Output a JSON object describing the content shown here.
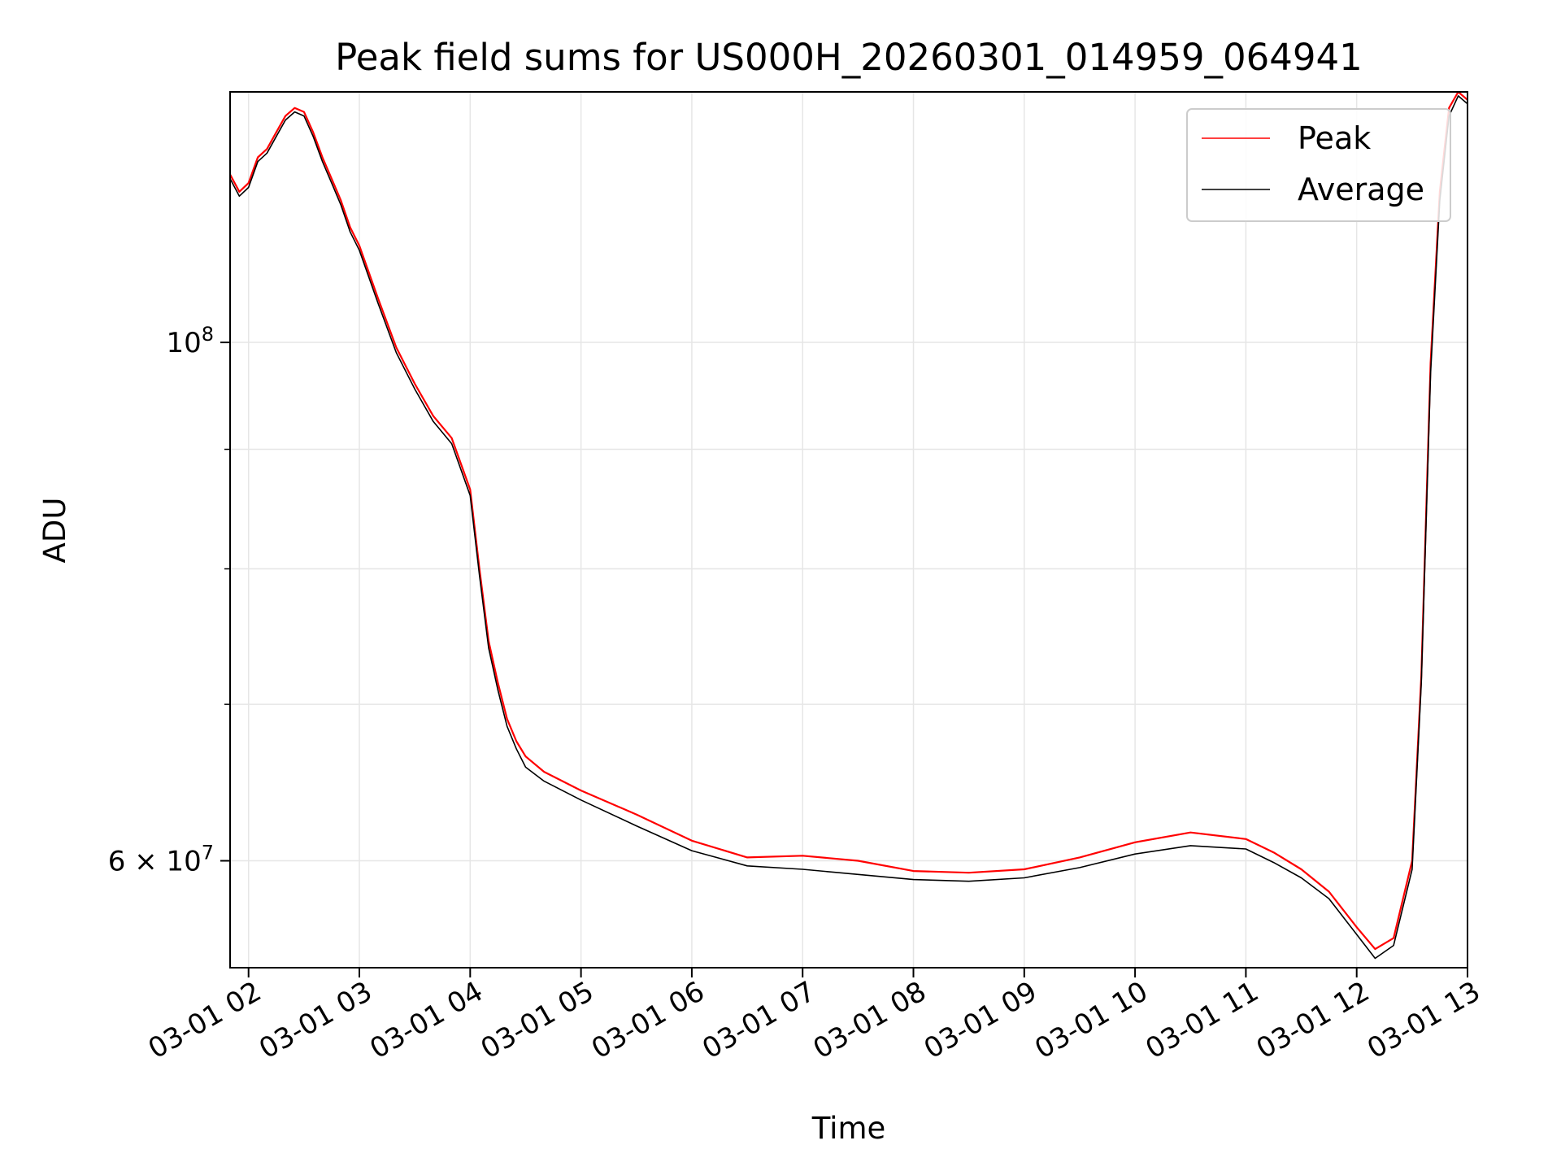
{
  "chart_data": {
    "type": "line",
    "title": "Peak field sums for US000H_20260301_014959_064941",
    "xlabel": "Time",
    "ylabel": "ADU",
    "y_scale": "log",
    "xlim": [
      "2026-03-01 01:50",
      "2026-03-01 13:00"
    ],
    "ylim": [
      54000000,
      128000000
    ],
    "x_ticks": [
      {
        "value": "2026-03-01 02:00",
        "label": "03-01 02"
      },
      {
        "value": "2026-03-01 03:00",
        "label": "03-01 03"
      },
      {
        "value": "2026-03-01 04:00",
        "label": "03-01 04"
      },
      {
        "value": "2026-03-01 05:00",
        "label": "03-01 05"
      },
      {
        "value": "2026-03-01 06:00",
        "label": "03-01 06"
      },
      {
        "value": "2026-03-01 07:00",
        "label": "03-01 07"
      },
      {
        "value": "2026-03-01 08:00",
        "label": "03-01 08"
      },
      {
        "value": "2026-03-01 09:00",
        "label": "03-01 09"
      },
      {
        "value": "2026-03-01 10:00",
        "label": "03-01 10"
      },
      {
        "value": "2026-03-01 11:00",
        "label": "03-01 11"
      },
      {
        "value": "2026-03-01 12:00",
        "label": "03-01 12"
      },
      {
        "value": "2026-03-01 13:00",
        "label": "03-01 13"
      }
    ],
    "y_ticks_major": [
      {
        "value": 60000000,
        "mantissa": "6",
        "exponent": "7"
      },
      {
        "value": 100000000,
        "mantissa": "",
        "exponent": "8"
      }
    ],
    "y_ticks_minor": [
      70000000,
      80000000,
      90000000
    ],
    "grid": true,
    "legend_position": "top-right",
    "series": [
      {
        "name": "Peak",
        "color": "#ff0000",
        "x": [
          "2026-03-01 01:50",
          "2026-03-01 01:55",
          "2026-03-01 02:00",
          "2026-03-01 02:05",
          "2026-03-01 02:10",
          "2026-03-01 02:15",
          "2026-03-01 02:20",
          "2026-03-01 02:25",
          "2026-03-01 02:30",
          "2026-03-01 02:35",
          "2026-03-01 02:40",
          "2026-03-01 02:45",
          "2026-03-01 02:50",
          "2026-03-01 02:55",
          "2026-03-01 03:00",
          "2026-03-01 03:10",
          "2026-03-01 03:20",
          "2026-03-01 03:30",
          "2026-03-01 03:40",
          "2026-03-01 03:50",
          "2026-03-01 04:00",
          "2026-03-01 04:05",
          "2026-03-01 04:10",
          "2026-03-01 04:15",
          "2026-03-01 04:20",
          "2026-03-01 04:25",
          "2026-03-01 04:30",
          "2026-03-01 04:40",
          "2026-03-01 05:00",
          "2026-03-01 05:30",
          "2026-03-01 06:00",
          "2026-03-01 06:30",
          "2026-03-01 07:00",
          "2026-03-01 07:30",
          "2026-03-01 08:00",
          "2026-03-01 08:30",
          "2026-03-01 09:00",
          "2026-03-01 09:30",
          "2026-03-01 10:00",
          "2026-03-01 10:30",
          "2026-03-01 11:00",
          "2026-03-01 11:15",
          "2026-03-01 11:30",
          "2026-03-01 11:45",
          "2026-03-01 12:00",
          "2026-03-01 12:10",
          "2026-03-01 12:20",
          "2026-03-01 12:30",
          "2026-03-01 12:35",
          "2026-03-01 12:40",
          "2026-03-01 12:45",
          "2026-03-01 12:50",
          "2026-03-01 12:55",
          "2026-03-01 13:00"
        ],
        "values": [
          118000000,
          116000000,
          117000000,
          120000000,
          121000000,
          123000000,
          125000000,
          126000000,
          125500000,
          123000000,
          120000000,
          117500000,
          115000000,
          112000000,
          110000000,
          104500000,
          99500000,
          96000000,
          93000000,
          91000000,
          86500000,
          80000000,
          74500000,
          71500000,
          69000000,
          67500000,
          66500000,
          65500000,
          64300000,
          62800000,
          61200000,
          60200000,
          60300000,
          60000000,
          59400000,
          59300000,
          59500000,
          60200000,
          61100000,
          61700000,
          61300000,
          60500000,
          59500000,
          58200000,
          56200000,
          55000000,
          55600000,
          60000000,
          72000000,
          98000000,
          116000000,
          126000000,
          128000000,
          127000000
        ]
      },
      {
        "name": "Average",
        "color": "#000000",
        "x": [
          "2026-03-01 01:50",
          "2026-03-01 01:55",
          "2026-03-01 02:00",
          "2026-03-01 02:05",
          "2026-03-01 02:10",
          "2026-03-01 02:15",
          "2026-03-01 02:20",
          "2026-03-01 02:25",
          "2026-03-01 02:30",
          "2026-03-01 02:35",
          "2026-03-01 02:40",
          "2026-03-01 02:45",
          "2026-03-01 02:50",
          "2026-03-01 02:55",
          "2026-03-01 03:00",
          "2026-03-01 03:10",
          "2026-03-01 03:20",
          "2026-03-01 03:30",
          "2026-03-01 03:40",
          "2026-03-01 03:50",
          "2026-03-01 04:00",
          "2026-03-01 04:05",
          "2026-03-01 04:10",
          "2026-03-01 04:15",
          "2026-03-01 04:20",
          "2026-03-01 04:25",
          "2026-03-01 04:30",
          "2026-03-01 04:40",
          "2026-03-01 05:00",
          "2026-03-01 05:30",
          "2026-03-01 06:00",
          "2026-03-01 06:30",
          "2026-03-01 07:00",
          "2026-03-01 07:30",
          "2026-03-01 08:00",
          "2026-03-01 08:30",
          "2026-03-01 09:00",
          "2026-03-01 09:30",
          "2026-03-01 10:00",
          "2026-03-01 10:30",
          "2026-03-01 11:00",
          "2026-03-01 11:15",
          "2026-03-01 11:30",
          "2026-03-01 11:45",
          "2026-03-01 12:00",
          "2026-03-01 12:10",
          "2026-03-01 12:20",
          "2026-03-01 12:30",
          "2026-03-01 12:35",
          "2026-03-01 12:40",
          "2026-03-01 12:45",
          "2026-03-01 12:50",
          "2026-03-01 12:55",
          "2026-03-01 13:00"
        ],
        "values": [
          117500000,
          115500000,
          116500000,
          119500000,
          120500000,
          122500000,
          124500000,
          125500000,
          125000000,
          122500000,
          119500000,
          117000000,
          114500000,
          111500000,
          109500000,
          104000000,
          99000000,
          95500000,
          92500000,
          90500000,
          86000000,
          79500000,
          74000000,
          71000000,
          68500000,
          67000000,
          65800000,
          64900000,
          63700000,
          62100000,
          60600000,
          59700000,
          59500000,
          59200000,
          58900000,
          58800000,
          59000000,
          59600000,
          60400000,
          60900000,
          60700000,
          59900000,
          59000000,
          57800000,
          55800000,
          54500000,
          55200000,
          59500000,
          71500000,
          97000000,
          115000000,
          125000000,
          127500000,
          126500000
        ]
      }
    ]
  }
}
